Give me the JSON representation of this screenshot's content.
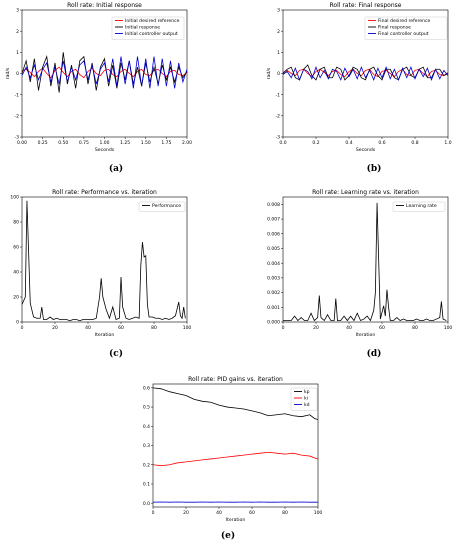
{
  "chart_data": [
    {
      "type": "line",
      "caption": "(a)",
      "title": "Roll rate: Initial response",
      "xlabel": "Seconds",
      "ylabel": "rad/s",
      "xlim": [
        0,
        2
      ],
      "ylim": [
        -3,
        3
      ],
      "xticks": [
        "0.00",
        "0.25",
        "0.50",
        "0.75",
        "1.00",
        "1.25",
        "1.50",
        "1.75",
        "2.00"
      ],
      "yticks": [
        "-3",
        "-2",
        "-1",
        "0",
        "1",
        "2",
        "3"
      ],
      "legend_position": "top-right",
      "x": [
        0.0,
        0.05,
        0.1,
        0.15,
        0.2,
        0.25,
        0.3,
        0.35,
        0.4,
        0.45,
        0.5,
        0.55,
        0.6,
        0.65,
        0.7,
        0.75,
        0.8,
        0.85,
        0.9,
        0.95,
        1.0,
        1.05,
        1.1,
        1.15,
        1.2,
        1.25,
        1.3,
        1.35,
        1.4,
        1.45,
        1.5,
        1.55,
        1.6,
        1.65,
        1.7,
        1.75,
        1.8,
        1.85,
        1.9,
        1.95,
        2.0
      ],
      "series": [
        {
          "name": "Initial desired reference",
          "color": "#ff0000",
          "values": [
            0.1,
            0.2,
            0.05,
            -0.15,
            0.1,
            0.25,
            0.0,
            -0.2,
            0.15,
            0.3,
            0.05,
            -0.15,
            0.1,
            0.2,
            -0.05,
            -0.2,
            0.1,
            0.25,
            0.0,
            -0.1,
            0.15,
            0.2,
            -0.05,
            -0.15,
            0.1,
            0.2,
            0.0,
            -0.15,
            0.1,
            0.2,
            -0.05,
            -0.1,
            0.15,
            0.2,
            0.0,
            -0.15,
            0.1,
            0.15,
            -0.05,
            -0.1,
            0.05
          ]
        },
        {
          "name": "Initial response",
          "color": "#000000",
          "values": [
            0.0,
            0.6,
            -0.4,
            0.7,
            -0.8,
            0.3,
            0.8,
            -0.6,
            0.5,
            -0.9,
            1.0,
            -0.5,
            0.4,
            -0.7,
            0.6,
            0.8,
            -0.5,
            0.5,
            -0.8,
            0.3,
            0.7,
            -0.6,
            0.4,
            -0.7,
            0.5,
            -0.3,
            0.6,
            -0.5,
            0.3,
            -0.6,
            0.5,
            -0.4,
            0.3,
            -0.5,
            0.4,
            -0.3,
            0.3,
            -0.4,
            0.3,
            -0.2,
            0.1
          ]
        },
        {
          "name": "Initial controller output",
          "color": "#0000cc",
          "values": [
            -0.1,
            0.3,
            -0.2,
            0.4,
            -0.3,
            0.2,
            0.5,
            -0.4,
            0.3,
            -0.5,
            0.6,
            -0.4,
            0.3,
            -0.3,
            0.4,
            0.6,
            -0.3,
            0.4,
            -0.5,
            0.2,
            0.5,
            -0.4,
            0.7,
            -0.6,
            0.8,
            -0.5,
            0.6,
            -0.7,
            0.8,
            -0.6,
            0.7,
            -0.7,
            0.8,
            -0.6,
            0.7,
            -0.6,
            0.6,
            -0.7,
            0.5,
            -0.4,
            0.2
          ]
        }
      ]
    },
    {
      "type": "line",
      "caption": "(b)",
      "title": "Roll rate: Final response",
      "xlabel": "Seconds",
      "ylabel": "rad/s",
      "xlim": [
        0,
        1
      ],
      "ylim": [
        -3,
        3
      ],
      "xticks": [
        "0.0",
        "0.2",
        "0.4",
        "0.6",
        "0.8",
        "1.0"
      ],
      "yticks": [
        "-3",
        "-2",
        "-1",
        "0",
        "1",
        "2",
        "3"
      ],
      "legend_position": "top-right",
      "x": [
        0.0,
        0.025,
        0.05,
        0.075,
        0.1,
        0.125,
        0.15,
        0.175,
        0.2,
        0.225,
        0.25,
        0.275,
        0.3,
        0.325,
        0.35,
        0.375,
        0.4,
        0.425,
        0.45,
        0.475,
        0.5,
        0.525,
        0.55,
        0.575,
        0.6,
        0.625,
        0.65,
        0.675,
        0.7,
        0.725,
        0.75,
        0.775,
        0.8,
        0.825,
        0.85,
        0.875,
        0.9,
        0.925,
        0.95,
        0.975,
        1.0
      ],
      "series": [
        {
          "name": "Final desired reference",
          "color": "#ff0000",
          "values": [
            0.05,
            0.15,
            0.0,
            -0.1,
            0.15,
            0.2,
            0.0,
            -0.15,
            0.1,
            0.2,
            0.05,
            -0.1,
            0.1,
            0.15,
            -0.05,
            -0.15,
            0.1,
            0.2,
            0.0,
            -0.1,
            0.15,
            0.2,
            -0.05,
            -0.15,
            0.1,
            0.15,
            0.0,
            -0.15,
            0.1,
            0.2,
            -0.05,
            -0.1,
            0.15,
            0.2,
            0.0,
            -0.15,
            0.1,
            0.15,
            -0.05,
            -0.1,
            0.05
          ]
        },
        {
          "name": "Final response",
          "color": "#000000",
          "values": [
            0.0,
            0.2,
            0.3,
            -0.2,
            -0.3,
            0.2,
            0.4,
            -0.1,
            -0.3,
            0.2,
            0.3,
            -0.2,
            -0.2,
            0.3,
            0.2,
            -0.3,
            -0.1,
            0.3,
            0.2,
            -0.2,
            -0.3,
            0.2,
            0.3,
            -0.1,
            -0.3,
            0.2,
            0.2,
            -0.2,
            -0.3,
            0.2,
            0.3,
            -0.1,
            -0.2,
            0.2,
            0.3,
            -0.2,
            -0.2,
            0.2,
            0.2,
            -0.1,
            0.0
          ]
        },
        {
          "name": "Final controller output",
          "color": "#0000cc",
          "values": [
            -0.05,
            0.1,
            -0.2,
            0.25,
            -0.3,
            0.2,
            0.1,
            -0.25,
            0.3,
            -0.2,
            0.15,
            -0.25,
            0.2,
            0.1,
            -0.3,
            0.25,
            -0.15,
            0.2,
            -0.25,
            0.3,
            -0.2,
            0.15,
            -0.3,
            0.25,
            -0.2,
            0.3,
            -0.25,
            0.2,
            -0.3,
            0.25,
            -0.2,
            0.3,
            -0.25,
            0.2,
            -0.15,
            0.25,
            -0.3,
            0.2,
            -0.25,
            0.15,
            -0.1
          ]
        }
      ]
    },
    {
      "type": "line",
      "caption": "(c)",
      "title": "Roll rate: Performance vs. iteration",
      "xlabel": "Iteration",
      "ylabel": "",
      "xlim": [
        0,
        100
      ],
      "ylim": [
        0,
        100
      ],
      "xticks": [
        "0",
        "20",
        "40",
        "60",
        "80",
        "100"
      ],
      "yticks": [
        "0",
        "20",
        "40",
        "60",
        "80",
        "100"
      ],
      "legend_position": "top-right",
      "x": [
        0,
        2,
        3,
        5,
        7,
        9,
        11,
        12,
        13,
        15,
        17,
        19,
        21,
        23,
        25,
        27,
        29,
        31,
        33,
        35,
        37,
        39,
        41,
        43,
        45,
        47,
        48,
        49,
        51,
        53,
        55,
        57,
        59,
        60,
        61,
        63,
        65,
        67,
        69,
        71,
        72,
        73,
        74,
        75,
        76,
        77,
        79,
        81,
        83,
        85,
        87,
        89,
        91,
        93,
        95,
        96,
        97,
        98,
        99
      ],
      "series": [
        {
          "name": "Performance",
          "color": "#000000",
          "values": [
            14,
            20,
            97,
            15,
            4,
            3,
            3,
            12,
            2,
            2,
            4,
            2,
            3,
            2,
            2,
            2,
            1,
            2,
            2,
            1,
            2,
            2,
            2,
            2,
            3,
            20,
            35,
            20,
            10,
            3,
            12,
            2,
            3,
            36,
            12,
            3,
            2,
            3,
            4,
            3,
            45,
            64,
            52,
            53,
            14,
            4,
            4,
            3,
            3,
            2,
            3,
            2,
            3,
            5,
            16,
            5,
            3,
            12,
            3
          ]
        }
      ]
    },
    {
      "type": "line",
      "caption": "(d)",
      "title": "Roll rate: Learning rate vs. iteration",
      "xlabel": "Iteration",
      "ylabel": "",
      "xlim": [
        0,
        100
      ],
      "ylim": [
        0,
        0.0085
      ],
      "xticks": [
        "0",
        "20",
        "40",
        "60",
        "80",
        "100"
      ],
      "yticks": [
        "0.000",
        "0.001",
        "0.002",
        "0.003",
        "0.004",
        "0.005",
        "0.006",
        "0.007",
        "0.008"
      ],
      "legend_position": "top-right",
      "x": [
        0,
        3,
        5,
        7,
        9,
        11,
        13,
        15,
        17,
        19,
        21,
        22,
        23,
        25,
        27,
        29,
        31,
        32,
        33,
        35,
        37,
        39,
        41,
        43,
        45,
        47,
        49,
        51,
        53,
        55,
        56,
        57,
        59,
        61,
        62,
        63,
        64,
        65,
        67,
        69,
        71,
        73,
        75,
        77,
        79,
        81,
        83,
        85,
        87,
        89,
        91,
        93,
        95,
        96,
        97,
        99
      ],
      "series": [
        {
          "name": "Learning rate",
          "color": "#000000",
          "values": [
            0.0001,
            0.0001,
            0.0001,
            0.0004,
            0.0001,
            0.0003,
            0.0001,
            0.0001,
            0.0006,
            0.0001,
            0.0003,
            0.0018,
            0.0003,
            0.0001,
            0.0005,
            0.0001,
            0.0001,
            0.0016,
            0.0001,
            0.0001,
            0.0004,
            0.0001,
            0.0004,
            0.0001,
            0.0006,
            0.0001,
            0.0002,
            0.0004,
            0.0001,
            0.0008,
            0.002,
            0.0081,
            0.0002,
            0.0011,
            0.0004,
            0.0022,
            0.001,
            0.0001,
            0.0001,
            0.0003,
            0.0001,
            0.0002,
            0.0001,
            0.0001,
            0.0001,
            0.0002,
            0.0001,
            0.0001,
            0.0002,
            0.0001,
            0.0001,
            0.0002,
            0.0003,
            0.0014,
            0.0002,
            0.0001
          ]
        }
      ]
    },
    {
      "type": "line",
      "caption": "(e)",
      "title": "Roll rate: PID gains vs. iteration",
      "xlabel": "Iteration",
      "ylabel": "",
      "xlim": [
        0,
        100
      ],
      "ylim": [
        -0.02,
        0.62
      ],
      "xticks": [
        "0",
        "20",
        "40",
        "60",
        "80",
        "100"
      ],
      "yticks": [
        "0.0",
        "0.1",
        "0.2",
        "0.3",
        "0.4",
        "0.5",
        "0.6"
      ],
      "legend_position": "top-right",
      "x": [
        0,
        5,
        10,
        15,
        20,
        25,
        30,
        35,
        40,
        45,
        50,
        55,
        60,
        65,
        70,
        75,
        80,
        85,
        90,
        95,
        98,
        100
      ],
      "series": [
        {
          "name": "kp",
          "color": "#000000",
          "values": [
            0.6,
            0.595,
            0.58,
            0.57,
            0.56,
            0.54,
            0.53,
            0.525,
            0.51,
            0.5,
            0.495,
            0.49,
            0.48,
            0.47,
            0.455,
            0.46,
            0.465,
            0.455,
            0.45,
            0.46,
            0.44,
            0.435
          ]
        },
        {
          "name": "ki",
          "color": "#ff0000",
          "values": [
            0.2,
            0.195,
            0.2,
            0.21,
            0.215,
            0.22,
            0.225,
            0.23,
            0.235,
            0.24,
            0.245,
            0.25,
            0.255,
            0.26,
            0.265,
            0.26,
            0.255,
            0.26,
            0.25,
            0.245,
            0.235,
            0.23
          ]
        },
        {
          "name": "kd",
          "color": "#0000cc",
          "values": [
            0.005,
            0.006,
            0.005,
            0.006,
            0.005,
            0.005,
            0.006,
            0.005,
            0.006,
            0.005,
            0.005,
            0.006,
            0.005,
            0.006,
            0.005,
            0.005,
            0.006,
            0.005,
            0.006,
            0.005,
            0.005,
            0.005
          ]
        }
      ]
    }
  ]
}
